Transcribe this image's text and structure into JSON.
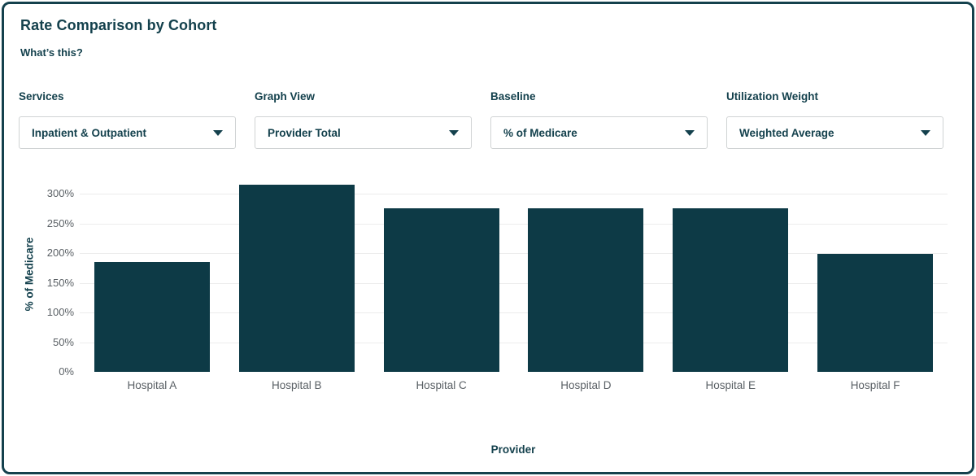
{
  "header": {
    "title": "Rate Comparison by Cohort",
    "whats_this_label": "What’s this?"
  },
  "filters": {
    "services": {
      "label": "Services",
      "value": "Inpatient & Outpatient"
    },
    "graph_view": {
      "label": "Graph View",
      "value": "Provider Total"
    },
    "baseline": {
      "label": "Baseline",
      "value": "% of Medicare"
    },
    "utilization_weight": {
      "label": "Utilization Weight",
      "value": "Weighted Average"
    }
  },
  "chart_data": {
    "type": "bar",
    "title": "Rate Comparison by Cohort",
    "categories": [
      "Hospital A",
      "Hospital B",
      "Hospital C",
      "Hospital D",
      "Hospital E",
      "Hospital F"
    ],
    "values": [
      185,
      315,
      276,
      276,
      276,
      199
    ],
    "value_unit": "percent_of_medicare",
    "xlabel": "Provider",
    "ylabel": "% of Medicare",
    "ytick_values": [
      0,
      50,
      100,
      150,
      200,
      250,
      300
    ],
    "ytick_labels": [
      "0%",
      "50%",
      "100%",
      "150%",
      "200%",
      "250%",
      "300%"
    ],
    "ylim": [
      0,
      325
    ],
    "grid": true,
    "legend": false
  },
  "colors": {
    "accent_teal": "#14414d",
    "bar_fill": "#0d3a46",
    "grid_line": "#ececec",
    "tick_gray": "#5a6065",
    "dropdown_border": "#d0d3d4"
  }
}
